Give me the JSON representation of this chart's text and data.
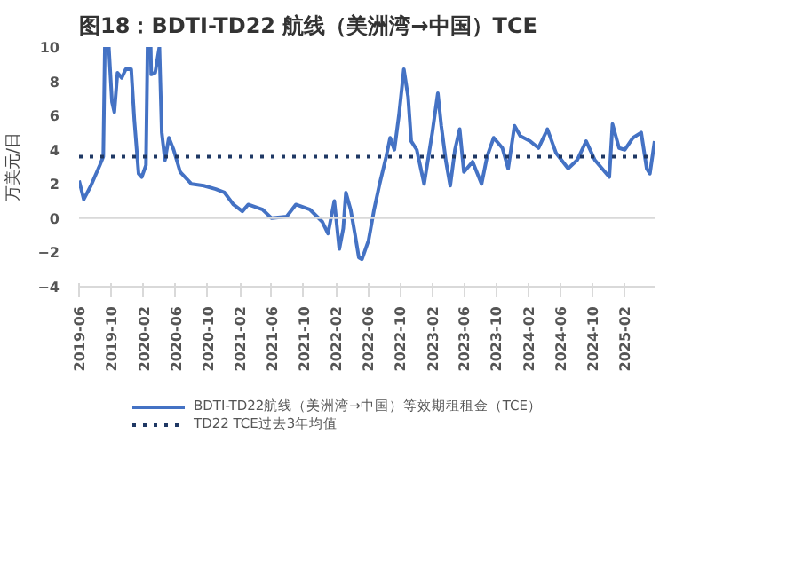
{
  "chart_data": {
    "type": "line",
    "title": "图18：BDTI-TD22 航线（美洲湾→中国）TCE",
    "ylabel": "万美元/日",
    "xlim": [
      "2019-06-01",
      "2025-05-25"
    ],
    "xticks": [
      "2019-06",
      "2019-10",
      "2020-02",
      "2020-06",
      "2020-10",
      "2021-02",
      "2021-06",
      "2021-10",
      "2022-02",
      "2022-06",
      "2022-10",
      "2023-02",
      "2023-06",
      "2023-10",
      "2024-02",
      "2024-06",
      "2024-10",
      "2025-02"
    ],
    "ylim": [
      -4,
      10
    ],
    "yticks": [
      -4,
      -2,
      0,
      2,
      4,
      6,
      8,
      10
    ],
    "grid": false,
    "legend": "bottom",
    "ref_lines": [
      {
        "axis": "y",
        "value": 0,
        "color": "#d9d9d9",
        "line_style": "solid"
      }
    ],
    "series": [
      {
        "name": "BDTI-TD22航线（美洲湾→中国）等效期租租金（TCE）",
        "color": "#4472c4",
        "line_style": "solid",
        "x": [
          "2019-06-01",
          "2019-06-19",
          "2019-07-16",
          "2019-08-19",
          "2019-09-01",
          "2019-09-07",
          "2019-09-22",
          "2019-10-04",
          "2019-10-13",
          "2019-10-25",
          "2019-11-10",
          "2019-11-25",
          "2019-12-16",
          "2019-12-28",
          "2020-01-13",
          "2020-01-25",
          "2020-02-10",
          "2020-02-16",
          "2020-02-28",
          "2020-03-01",
          "2020-03-16",
          "2020-04-01",
          "2020-04-10",
          "2020-04-22",
          "2020-05-07",
          "2020-05-25",
          "2020-06-19",
          "2020-08-01",
          "2020-09-16",
          "2020-11-01",
          "2020-12-04",
          "2021-01-07",
          "2021-02-10",
          "2021-03-04",
          "2021-04-28",
          "2021-06-01",
          "2021-07-28",
          "2021-09-01",
          "2021-10-25",
          "2021-12-10",
          "2022-01-01",
          "2022-01-25",
          "2022-02-13",
          "2022-02-28",
          "2022-03-10",
          "2022-03-28",
          "2022-04-13",
          "2022-04-28",
          "2022-05-10",
          "2022-06-04",
          "2022-06-25",
          "2022-07-16",
          "2022-08-10",
          "2022-08-25",
          "2022-09-10",
          "2022-09-28",
          "2022-10-16",
          "2022-11-01",
          "2022-11-13",
          "2022-12-04",
          "2023-01-01",
          "2023-02-01",
          "2023-02-22",
          "2023-03-07",
          "2023-03-25",
          "2023-04-10",
          "2023-04-28",
          "2023-05-16",
          "2023-06-01",
          "2023-07-04",
          "2023-08-07",
          "2023-08-28",
          "2023-09-22",
          "2023-10-25",
          "2023-11-16",
          "2023-12-10",
          "2024-01-01",
          "2024-02-07",
          "2024-03-10",
          "2024-04-13",
          "2024-05-16",
          "2024-07-01",
          "2024-08-04",
          "2024-09-07",
          "2024-10-10",
          "2024-12-04",
          "2024-12-16",
          "2025-01-10",
          "2025-02-01",
          "2025-03-04",
          "2025-04-04",
          "2025-04-25",
          "2025-05-07",
          "2025-05-25"
        ],
        "values": [
          2.2,
          1.1,
          1.9,
          3.1,
          3.6,
          10,
          10,
          6.8,
          6.2,
          8.5,
          8.2,
          8.7,
          8.7,
          5.7,
          2.6,
          2.4,
          3.1,
          10,
          10,
          8.4,
          8.5,
          10,
          5.0,
          3.4,
          4.7,
          4.0,
          2.7,
          2.0,
          1.9,
          1.7,
          1.5,
          0.8,
          0.4,
          0.8,
          0.5,
          0.0,
          0.1,
          0.8,
          0.5,
          -0.2,
          -0.9,
          1.0,
          -1.8,
          -0.6,
          1.5,
          0.5,
          -0.9,
          -2.3,
          -2.4,
          -1.3,
          0.5,
          2.0,
          3.6,
          4.7,
          4.0,
          6.1,
          8.7,
          7.1,
          4.5,
          4.0,
          2.0,
          5.0,
          7.3,
          5.4,
          3.3,
          1.9,
          4.0,
          5.2,
          2.7,
          3.3,
          2.0,
          3.6,
          4.7,
          4.1,
          2.9,
          5.4,
          4.8,
          4.5,
          4.1,
          5.2,
          3.8,
          2.9,
          3.4,
          4.5,
          3.4,
          2.4,
          5.5,
          4.1,
          4.0,
          4.7,
          5.0,
          2.9,
          2.6,
          4.5
        ]
      },
      {
        "name": "TD22 TCE过去3年均值",
        "color": "#1f3864",
        "line_style": "dotted",
        "x": [
          "2019-06-01",
          "2025-05-25"
        ],
        "values": [
          3.6,
          3.6
        ]
      }
    ]
  }
}
